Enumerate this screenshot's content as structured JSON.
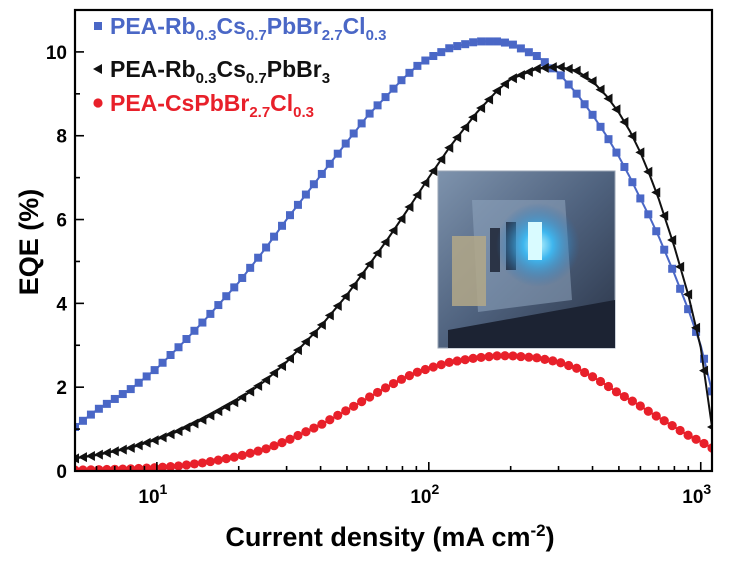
{
  "chart_data": {
    "type": "line",
    "xlabel": "Current density (mA cm",
    "xlabel_sup": "-2",
    "xlabel_close": ")",
    "ylabel": "EQE (%)",
    "xscale": "log",
    "xlim": [
      5,
      1100
    ],
    "ylim": [
      0,
      11
    ],
    "x_ticks": [
      {
        "value": 10,
        "base": "10",
        "exp": "1"
      },
      {
        "value": 100,
        "base": "10",
        "exp": "2"
      },
      {
        "value": 1000,
        "base": "10",
        "exp": "3"
      }
    ],
    "y_ticks": [
      0,
      2,
      4,
      6,
      8,
      10
    ],
    "legend_position": "top-left",
    "inset_photo": "blue LED device photo",
    "series": [
      {
        "name_parts": [
          [
            "PEA-Rb",
            ""
          ],
          [
            "0.3",
            "sub"
          ],
          [
            "Cs",
            ""
          ],
          [
            "0.7",
            "sub"
          ],
          [
            "PbBr",
            ""
          ],
          [
            "2.7",
            "sub"
          ],
          [
            "Cl",
            ""
          ],
          [
            "0.3",
            "sub"
          ]
        ],
        "color": "#4a67c6",
        "marker": "square",
        "x": [
          5,
          6,
          8,
          10,
          12,
          15,
          20,
          25,
          30,
          40,
          50,
          60,
          70,
          80,
          90,
          100,
          120,
          150,
          180,
          200,
          250,
          300,
          350,
          400,
          450,
          500,
          550,
          600,
          650,
          700,
          800,
          900,
          1000,
          1100
        ],
        "y": [
          1.05,
          1.45,
          1.95,
          2.45,
          2.95,
          3.6,
          4.5,
          5.3,
          6.0,
          7.05,
          7.85,
          8.5,
          8.95,
          9.35,
          9.65,
          9.85,
          10.1,
          10.25,
          10.25,
          10.2,
          9.9,
          9.5,
          9.0,
          8.5,
          8.0,
          7.5,
          7.0,
          6.5,
          6.05,
          5.6,
          4.7,
          3.85,
          3.0,
          1.9
        ]
      },
      {
        "name_parts": [
          [
            "PEA-Rb",
            ""
          ],
          [
            "0.3",
            "sub"
          ],
          [
            "Cs",
            ""
          ],
          [
            "0.7",
            "sub"
          ],
          [
            "PbBr",
            ""
          ],
          [
            "3",
            "sub"
          ]
        ],
        "color": "#111111",
        "marker": "triangle-left",
        "x": [
          5,
          6,
          8,
          10,
          12,
          15,
          20,
          25,
          30,
          40,
          50,
          60,
          70,
          80,
          90,
          100,
          120,
          150,
          180,
          200,
          250,
          300,
          350,
          400,
          450,
          500,
          550,
          600,
          650,
          700,
          800,
          900,
          1000,
          1100
        ],
        "y": [
          0.3,
          0.38,
          0.55,
          0.75,
          0.95,
          1.25,
          1.7,
          2.15,
          2.6,
          3.45,
          4.2,
          4.9,
          5.5,
          6.05,
          6.55,
          7.0,
          7.75,
          8.55,
          9.1,
          9.35,
          9.6,
          9.65,
          9.55,
          9.3,
          8.95,
          8.55,
          8.1,
          7.6,
          7.05,
          6.5,
          5.35,
          4.2,
          2.95,
          1.05
        ]
      },
      {
        "name_parts": [
          [
            "PEA-CsPbBr",
            ""
          ],
          [
            "2.7",
            "sub"
          ],
          [
            "Cl",
            ""
          ],
          [
            "0.3",
            "sub"
          ]
        ],
        "color": "#e8202a",
        "marker": "circle",
        "x": [
          5,
          6,
          8,
          10,
          12,
          15,
          20,
          25,
          30,
          40,
          50,
          60,
          70,
          80,
          90,
          100,
          120,
          150,
          180,
          200,
          250,
          300,
          350,
          400,
          450,
          500,
          550,
          600,
          650,
          700,
          800,
          900,
          1000,
          1100
        ],
        "y": [
          0.02,
          0.03,
          0.05,
          0.08,
          0.12,
          0.2,
          0.35,
          0.52,
          0.72,
          1.1,
          1.45,
          1.75,
          2.0,
          2.2,
          2.35,
          2.45,
          2.6,
          2.7,
          2.75,
          2.75,
          2.7,
          2.6,
          2.45,
          2.25,
          2.05,
          1.85,
          1.7,
          1.55,
          1.4,
          1.28,
          1.05,
          0.85,
          0.7,
          0.55
        ]
      }
    ]
  }
}
